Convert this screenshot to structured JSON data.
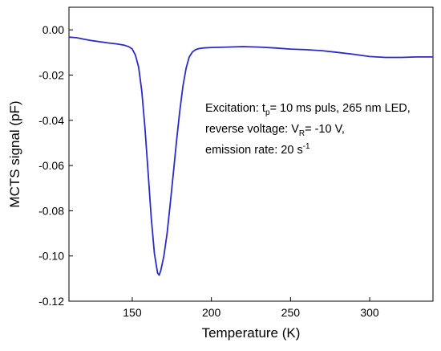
{
  "chart_data": {
    "type": "line",
    "xlabel": "Temperature (K)",
    "ylabel": "MCTS signal (pF)",
    "xlim": [
      110,
      340
    ],
    "ylim": [
      -0.12,
      0.01
    ],
    "grid": false,
    "x_ticks": [
      150,
      200,
      250,
      300
    ],
    "x_tick_labels": [
      "150",
      "200",
      "250",
      "300"
    ],
    "y_ticks": [
      0.0,
      -0.02,
      -0.04,
      -0.06,
      -0.08,
      -0.1,
      -0.12
    ],
    "y_tick_labels": [
      "0.00",
      "-0.02",
      "-0.04",
      "-0.06",
      "-0.08",
      "-0.10",
      "-0.12"
    ],
    "series": [
      {
        "color": "#2b2bc8",
        "x": [
          110,
          115,
          120,
          125,
          130,
          135,
          140,
          145,
          148,
          150,
          152,
          154,
          156,
          158,
          160,
          162,
          164,
          166,
          167,
          168,
          170,
          172,
          174,
          176,
          178,
          180,
          182,
          184,
          186,
          188,
          190,
          192,
          195,
          200,
          210,
          220,
          230,
          240,
          250,
          260,
          270,
          280,
          290,
          300,
          310,
          320,
          330,
          340
        ],
        "y": [
          -0.0032,
          -0.0035,
          -0.0042,
          -0.0048,
          -0.0053,
          -0.0058,
          -0.0062,
          -0.0068,
          -0.0075,
          -0.0085,
          -0.0112,
          -0.0165,
          -0.027,
          -0.043,
          -0.063,
          -0.083,
          -0.099,
          -0.1075,
          -0.1085,
          -0.1065,
          -0.1,
          -0.09,
          -0.077,
          -0.063,
          -0.049,
          -0.036,
          -0.025,
          -0.017,
          -0.012,
          -0.0098,
          -0.0088,
          -0.0083,
          -0.008,
          -0.0078,
          -0.0076,
          -0.0074,
          -0.0076,
          -0.008,
          -0.0085,
          -0.0088,
          -0.0092,
          -0.01,
          -0.0108,
          -0.0118,
          -0.0122,
          -0.0122,
          -0.012,
          -0.012
        ]
      }
    ],
    "annotation": {
      "line1_a": "Excitation: t",
      "line1_sub": "p",
      "line1_b": "= 10 ms puls, 265 nm LED,",
      "line2_a": "reverse voltage: V",
      "line2_sub": "R",
      "line2_b": "= -10 V,",
      "line3_a": "emission rate: 20 s",
      "line3_sup": "-1"
    }
  }
}
